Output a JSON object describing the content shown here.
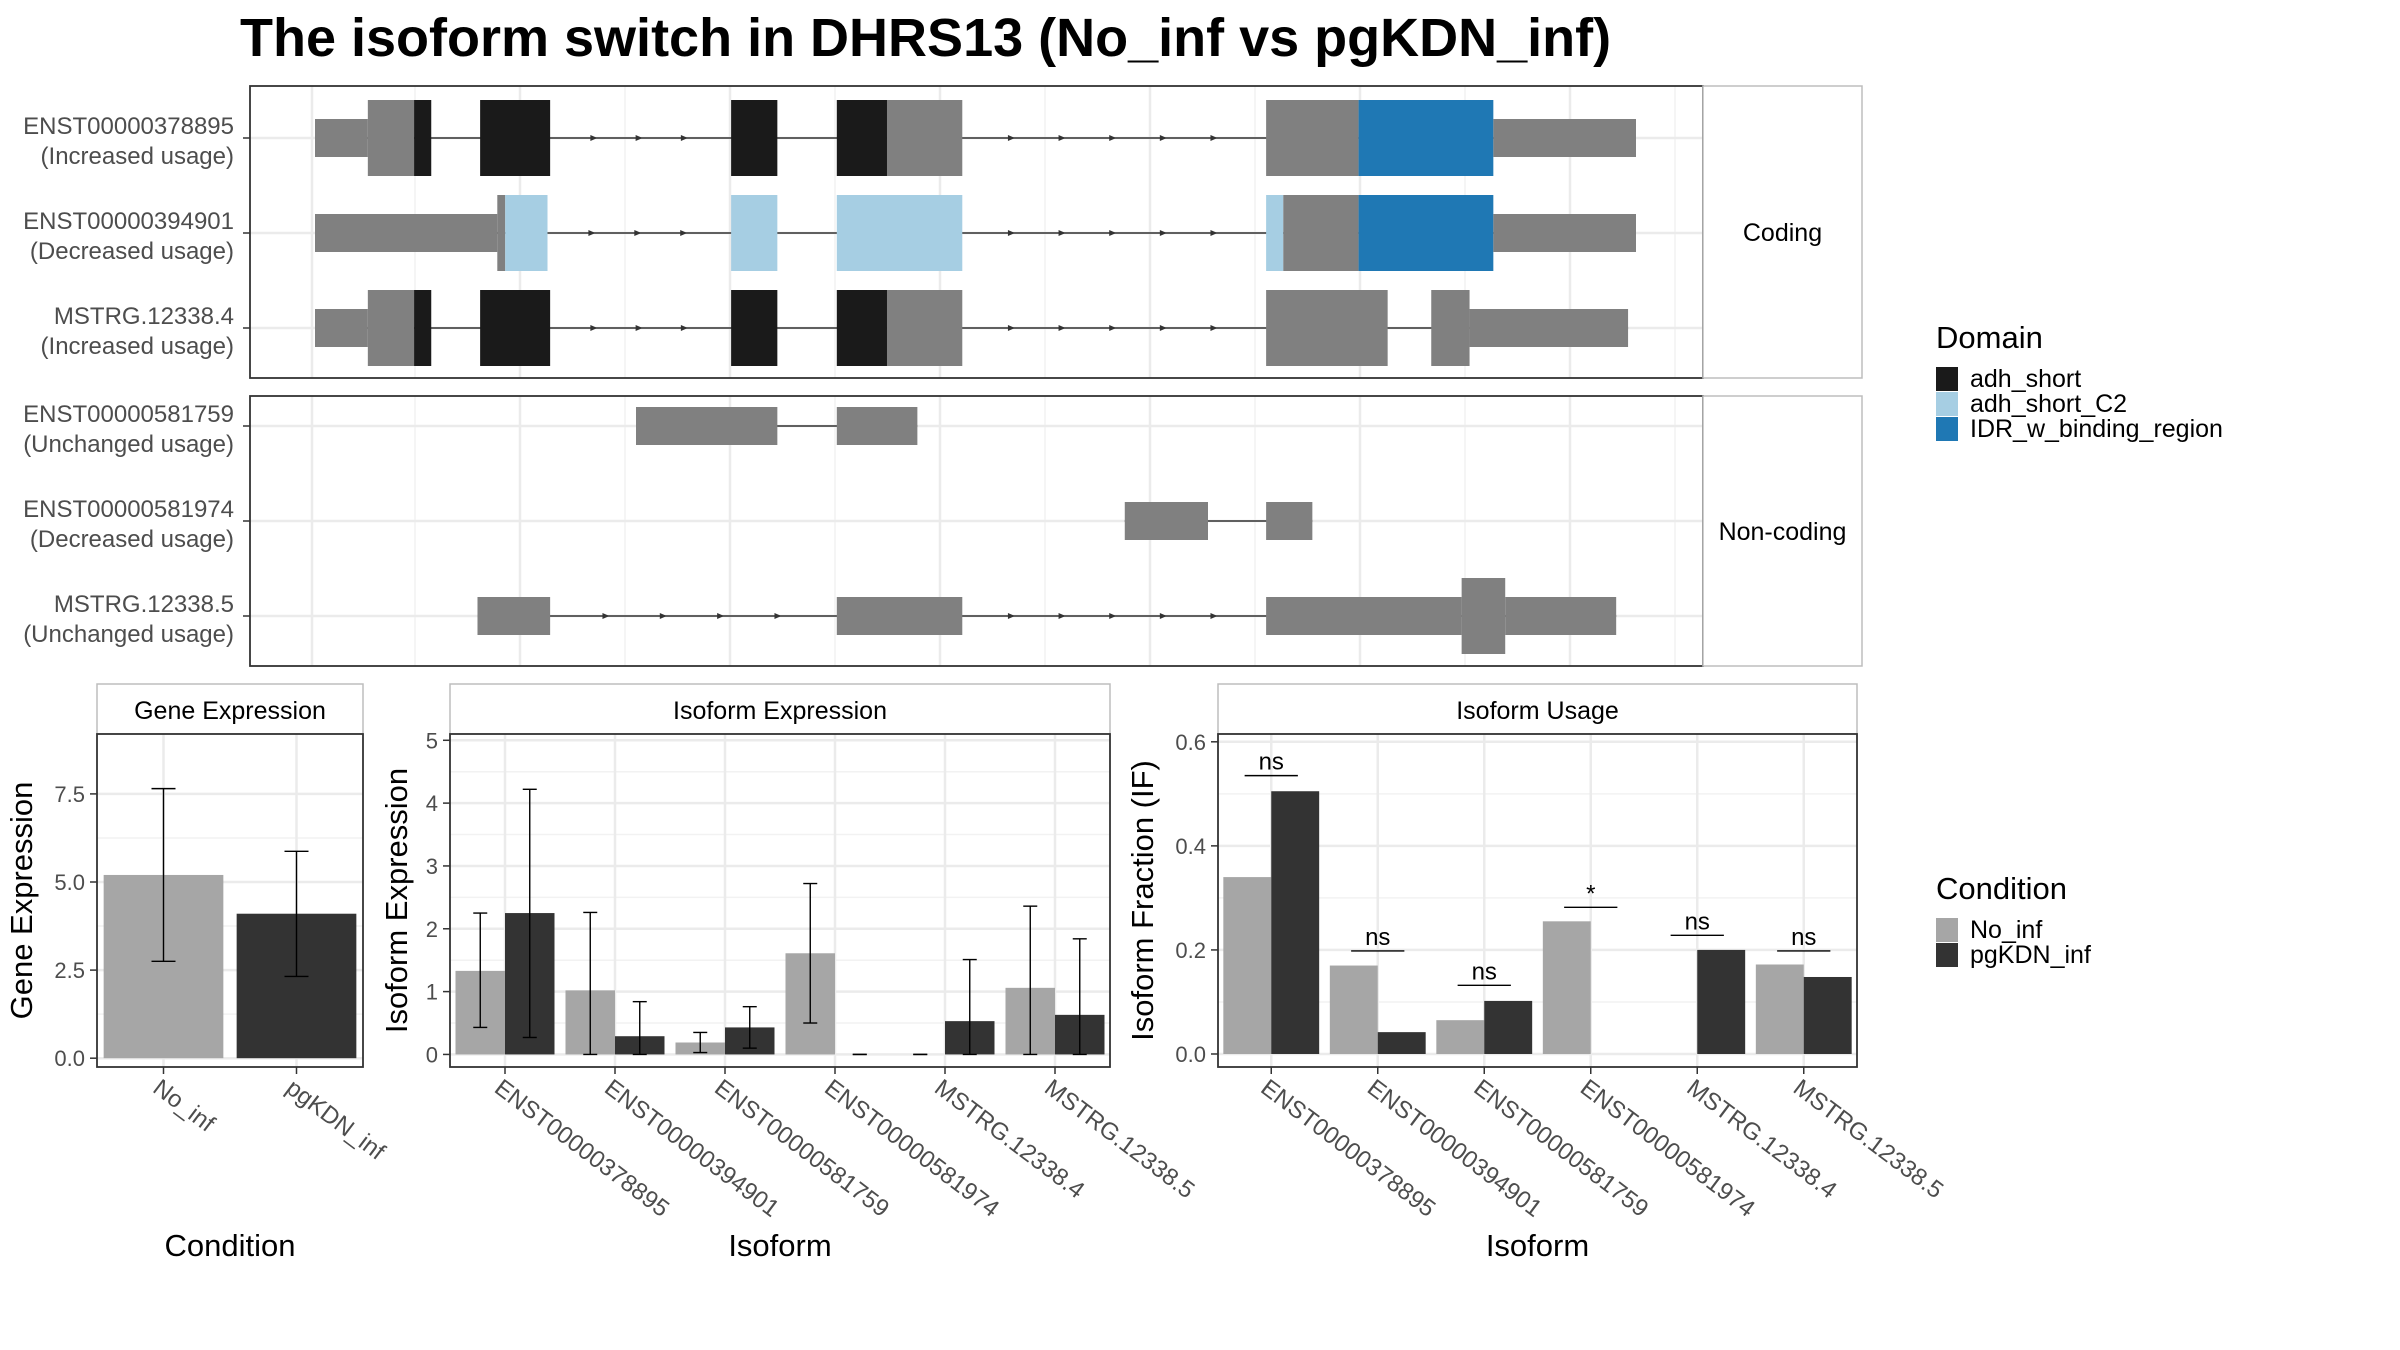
{
  "title": "The isoform switch in DHRS13 (No_inf vs pgKDN_inf)",
  "colors": {
    "utr": "#808080",
    "adh_short": "#1a1a1a",
    "adh_short_C2": "#a6cee3",
    "IDR_w_binding_region": "#1f78b4",
    "No_inf": "#a6a6a6",
    "pgKDN_inf": "#333333"
  },
  "legends": {
    "domain": {
      "title": "Domain",
      "items": [
        {
          "label": "adh_short",
          "color": "#1a1a1a"
        },
        {
          "label": "adh_short_C2",
          "color": "#a6cee3"
        },
        {
          "label": "IDR_w_binding_region",
          "color": "#1f78b4"
        }
      ]
    },
    "condition": {
      "title": "Condition",
      "items": [
        {
          "label": "No_inf",
          "color": "#a6a6a6"
        },
        {
          "label": "pgKDN_inf",
          "color": "#333333"
        }
      ]
    }
  },
  "chart_data": [
    {
      "type": "diagram",
      "name": "Transcript structures",
      "genomic_scale": "relative, 0-1000 units",
      "groups": [
        {
          "label": "Coding",
          "transcripts": [
            {
              "id": "ENST00000378895",
              "usage": "(Increased usage)",
              "intron": [
                0,
                1000
              ],
              "arrows": true,
              "exons": [
                {
                  "start": 0,
                  "end": 40,
                  "type": "utr"
                },
                {
                  "start": 40,
                  "end": 75,
                  "type": "cds",
                  "color": "utr"
                },
                {
                  "start": 75,
                  "end": 88,
                  "type": "cds",
                  "color": "adh_short"
                },
                {
                  "start": 125,
                  "end": 178,
                  "type": "cds",
                  "color": "adh_short"
                },
                {
                  "start": 315,
                  "end": 350,
                  "type": "cds",
                  "color": "adh_short"
                },
                {
                  "start": 395,
                  "end": 433,
                  "type": "cds",
                  "color": "adh_short"
                },
                {
                  "start": 433,
                  "end": 490,
                  "type": "cds",
                  "color": "utr"
                },
                {
                  "start": 720,
                  "end": 790,
                  "type": "cds",
                  "color": "utr"
                },
                {
                  "start": 790,
                  "end": 892,
                  "type": "cds",
                  "color": "IDR_w_binding_region"
                },
                {
                  "start": 892,
                  "end": 1000,
                  "type": "utr"
                }
              ]
            },
            {
              "id": "ENST00000394901",
              "usage": "(Decreased usage)",
              "intron": [
                0,
                1000
              ],
              "arrows": true,
              "exons": [
                {
                  "start": 0,
                  "end": 138,
                  "type": "utr"
                },
                {
                  "start": 138,
                  "end": 144,
                  "type": "cds",
                  "color": "utr"
                },
                {
                  "start": 144,
                  "end": 176,
                  "type": "cds",
                  "color": "adh_short_C2"
                },
                {
                  "start": 315,
                  "end": 350,
                  "type": "cds",
                  "color": "adh_short_C2"
                },
                {
                  "start": 395,
                  "end": 490,
                  "type": "cds",
                  "color": "adh_short_C2"
                },
                {
                  "start": 720,
                  "end": 733,
                  "type": "cds",
                  "color": "adh_short_C2"
                },
                {
                  "start": 733,
                  "end": 790,
                  "type": "cds",
                  "color": "utr"
                },
                {
                  "start": 790,
                  "end": 892,
                  "type": "cds",
                  "color": "IDR_w_binding_region"
                },
                {
                  "start": 892,
                  "end": 1000,
                  "type": "utr"
                }
              ]
            },
            {
              "id": "MSTRG.12338.4",
              "usage": "(Increased usage)",
              "intron": [
                0,
                994
              ],
              "arrows": true,
              "exons": [
                {
                  "start": 0,
                  "end": 40,
                  "type": "utr"
                },
                {
                  "start": 40,
                  "end": 75,
                  "type": "cds",
                  "color": "utr"
                },
                {
                  "start": 75,
                  "end": 88,
                  "type": "cds",
                  "color": "adh_short"
                },
                {
                  "start": 125,
                  "end": 178,
                  "type": "cds",
                  "color": "adh_short"
                },
                {
                  "start": 315,
                  "end": 350,
                  "type": "cds",
                  "color": "adh_short"
                },
                {
                  "start": 395,
                  "end": 433,
                  "type": "cds",
                  "color": "adh_short"
                },
                {
                  "start": 433,
                  "end": 490,
                  "type": "cds",
                  "color": "utr"
                },
                {
                  "start": 720,
                  "end": 812,
                  "type": "cds",
                  "color": "utr"
                },
                {
                  "start": 845,
                  "end": 874,
                  "type": "cds",
                  "color": "utr"
                },
                {
                  "start": 874,
                  "end": 994,
                  "type": "utr"
                }
              ]
            }
          ]
        },
        {
          "label": "Non-coding",
          "transcripts": [
            {
              "id": "ENST00000581759",
              "usage": "(Unchanged usage)",
              "intron": [
                243,
                456
              ],
              "arrows": false,
              "exons": [
                {
                  "start": 243,
                  "end": 350,
                  "type": "utr"
                },
                {
                  "start": 395,
                  "end": 456,
                  "type": "utr"
                }
              ]
            },
            {
              "id": "ENST00000581974",
              "usage": "(Decreased usage)",
              "intron": [
                613,
                755
              ],
              "arrows": false,
              "exons": [
                {
                  "start": 613,
                  "end": 676,
                  "type": "utr"
                },
                {
                  "start": 720,
                  "end": 755,
                  "type": "utr"
                }
              ]
            },
            {
              "id": "MSTRG.12338.5",
              "usage": "(Unchanged usage)",
              "intron": [
                123,
                985
              ],
              "arrows": true,
              "exons": [
                {
                  "start": 123,
                  "end": 178,
                  "type": "utr"
                },
                {
                  "start": 395,
                  "end": 490,
                  "type": "utr"
                },
                {
                  "start": 720,
                  "end": 868,
                  "type": "utr"
                },
                {
                  "start": 868,
                  "end": 901,
                  "type": "cds",
                  "color": "utr"
                },
                {
                  "start": 901,
                  "end": 985,
                  "type": "utr"
                }
              ]
            }
          ]
        }
      ]
    },
    {
      "type": "bar",
      "strip": "Gene Expression",
      "categories": [
        "No_inf",
        "pgKDN_inf"
      ],
      "values": [
        5.2,
        4.1
      ],
      "error_low": [
        2.75,
        2.32
      ],
      "error_high": [
        7.65,
        5.87
      ],
      "xlabel": "Condition",
      "ylabel": "Gene Expression",
      "ylim": [
        -0.25,
        9.2
      ],
      "yticks": [
        0.0,
        2.5,
        5.0,
        7.5
      ],
      "ytick_labels": [
        "0.0",
        "2.5",
        "5.0",
        "7.5"
      ]
    },
    {
      "type": "bar",
      "strip": "Isoform Expression",
      "categories": [
        "ENST00000378895",
        "ENST00000394901",
        "ENST00000581759",
        "ENST00000581974",
        "MSTRG.12338.4",
        "MSTRG.12338.5"
      ],
      "series": [
        {
          "name": "No_inf",
          "values": [
            1.33,
            1.02,
            0.19,
            1.61,
            0.0,
            1.06
          ],
          "error_low": [
            0.43,
            0.0,
            0.03,
            0.5,
            0.0,
            0.0
          ],
          "error_high": [
            2.25,
            2.26,
            0.35,
            2.72,
            0.0,
            2.36
          ]
        },
        {
          "name": "pgKDN_inf",
          "values": [
            2.25,
            0.29,
            0.43,
            0.0,
            0.53,
            0.63
          ],
          "error_low": [
            0.27,
            0.0,
            0.1,
            0.0,
            0.0,
            0.0
          ],
          "error_high": [
            4.22,
            0.84,
            0.76,
            0.0,
            1.51,
            1.84
          ]
        }
      ],
      "xlabel": "Isoform",
      "ylabel": "Isoform Expression",
      "ylim": [
        -0.2,
        5.1
      ],
      "yticks": [
        0,
        1,
        2,
        3,
        4,
        5
      ],
      "ytick_labels": [
        "0",
        "1",
        "2",
        "3",
        "4",
        "5"
      ]
    },
    {
      "type": "bar",
      "strip": "Isoform Usage",
      "categories": [
        "ENST00000378895",
        "ENST00000394901",
        "ENST00000581759",
        "ENST00000581974",
        "MSTRG.12338.4",
        "MSTRG.12338.5"
      ],
      "series": [
        {
          "name": "No_inf",
          "values": [
            0.34,
            0.17,
            0.065,
            0.255,
            0.0,
            0.172
          ]
        },
        {
          "name": "pgKDN_inf",
          "values": [
            0.505,
            0.042,
            0.102,
            0.0,
            0.2,
            0.148
          ]
        }
      ],
      "significance": [
        "ns",
        "ns",
        "ns",
        "*",
        "ns",
        "ns"
      ],
      "sig_bar_y": [
        0.535,
        0.198,
        0.132,
        0.282,
        0.228,
        0.198
      ],
      "xlabel": "Isoform",
      "ylabel": "Isoform Fraction (IF)",
      "ylim": [
        -0.025,
        0.615
      ],
      "yticks": [
        0.0,
        0.2,
        0.4,
        0.6
      ],
      "ytick_labels": [
        "0.0",
        "0.2",
        "0.4",
        "0.6"
      ]
    }
  ]
}
